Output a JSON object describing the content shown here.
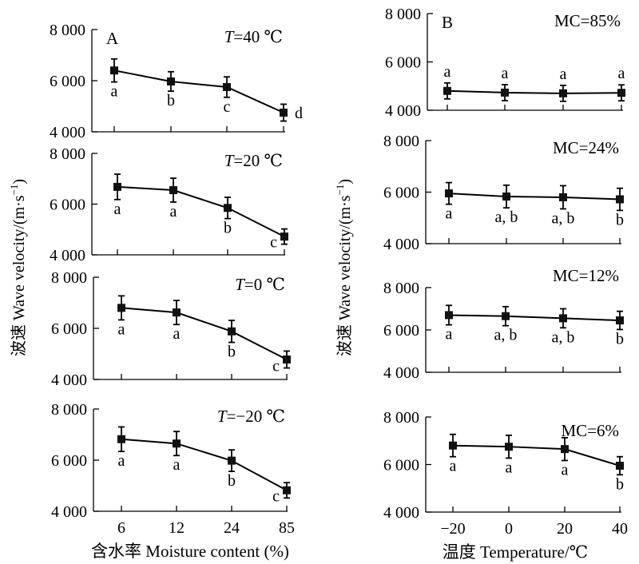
{
  "chart_data": [
    {
      "type": "line",
      "group": "A",
      "panel_letter": "A",
      "title": "T=40 ℃",
      "title_var": "T",
      "title_rest": "=40 ℃",
      "categories": [
        "6",
        "12",
        "24",
        "85"
      ],
      "values": [
        6400,
        5970,
        5750,
        4750
      ],
      "errors": [
        450,
        380,
        400,
        330
      ],
      "letters": [
        "a",
        "b",
        "c",
        "d"
      ],
      "letter_pos": [
        "below",
        "below",
        "below",
        "right"
      ],
      "ylim": [
        4000,
        8000
      ],
      "yticks": [
        "4 000",
        "6 000",
        "8 000"
      ]
    },
    {
      "type": "line",
      "group": "A",
      "title": "T=20 ℃",
      "title_var": "T",
      "title_rest": "=20 ℃",
      "categories": [
        "6",
        "12",
        "24",
        "85"
      ],
      "values": [
        6680,
        6550,
        5850,
        4720
      ],
      "errors": [
        500,
        470,
        420,
        300
      ],
      "letters": [
        "a",
        "a",
        "b",
        "c"
      ],
      "letter_pos": [
        "below",
        "below",
        "below",
        "left"
      ],
      "ylim": [
        4000,
        8000
      ],
      "yticks": [
        "4 000",
        "6 000",
        "8 000"
      ]
    },
    {
      "type": "line",
      "group": "A",
      "title": "T=0 ℃",
      "title_var": "T",
      "title_rest": "=0 ℃",
      "categories": [
        "6",
        "12",
        "24",
        "85"
      ],
      "values": [
        6800,
        6620,
        5880,
        4780
      ],
      "errors": [
        470,
        470,
        430,
        330
      ],
      "letters": [
        "a",
        "a",
        "b",
        "c"
      ],
      "letter_pos": [
        "below",
        "below",
        "below",
        "left"
      ],
      "ylim": [
        4000,
        8000
      ],
      "yticks": [
        "4 000",
        "6 000",
        "8 000"
      ]
    },
    {
      "type": "line",
      "group": "A",
      "title": "T=−20 ℃",
      "title_var": "T",
      "title_rest": "=−20 ℃",
      "categories": [
        "6",
        "12",
        "24",
        "85"
      ],
      "values": [
        6820,
        6650,
        5980,
        4820
      ],
      "errors": [
        480,
        470,
        420,
        300
      ],
      "letters": [
        "a",
        "a",
        "b",
        "c"
      ],
      "letter_pos": [
        "below",
        "below",
        "below",
        "left"
      ],
      "ylim": [
        4000,
        8000
      ],
      "yticks": [
        "4 000",
        "6 000",
        "8 000"
      ],
      "xlabel": "含水率 Moisture content (%)"
    },
    {
      "type": "line",
      "group": "B",
      "panel_letter": "B",
      "title": "MC=85%",
      "categories": [
        "−20",
        "0",
        "20",
        "40"
      ],
      "values": [
        4800,
        4730,
        4700,
        4720
      ],
      "errors": [
        330,
        330,
        330,
        330
      ],
      "letters": [
        "a",
        "a",
        "a",
        "a"
      ],
      "letter_pos": [
        "above",
        "above",
        "above",
        "above"
      ],
      "ylim": [
        4000,
        8000
      ],
      "yticks": [
        "4 000",
        "6 000",
        "8 000"
      ]
    },
    {
      "type": "line",
      "group": "B",
      "title": "MC=24%",
      "categories": [
        "−20",
        "0",
        "20",
        "40"
      ],
      "values": [
        5950,
        5830,
        5800,
        5720
      ],
      "errors": [
        420,
        440,
        450,
        430
      ],
      "letters": [
        "a",
        "a, b",
        "a, b",
        "b"
      ],
      "letter_pos": [
        "below",
        "below",
        "below",
        "below"
      ],
      "ylim": [
        4000,
        8000
      ],
      "yticks": [
        "4 000",
        "6 000",
        "8 000"
      ]
    },
    {
      "type": "line",
      "group": "B",
      "title": "MC=12%",
      "categories": [
        "−20",
        "0",
        "20",
        "40"
      ],
      "values": [
        6700,
        6650,
        6550,
        6450
      ],
      "errors": [
        460,
        450,
        450,
        430
      ],
      "letters": [
        "a",
        "a, b",
        "a, b",
        "b"
      ],
      "letter_pos": [
        "below",
        "below",
        "below",
        "below"
      ],
      "ylim": [
        4000,
        8000
      ],
      "yticks": [
        "4 000",
        "6 000",
        "8 000"
      ]
    },
    {
      "type": "line",
      "group": "B",
      "title": "MC=6%",
      "categories": [
        "−20",
        "0",
        "20",
        "40"
      ],
      "values": [
        6800,
        6750,
        6650,
        5950
      ],
      "errors": [
        470,
        480,
        480,
        380
      ],
      "letters": [
        "a",
        "a",
        "a",
        "b"
      ],
      "letter_pos": [
        "below",
        "below",
        "below",
        "below"
      ],
      "ylim": [
        4000,
        8000
      ],
      "yticks": [
        "4 000",
        "6 000",
        "8 000"
      ],
      "xlabel": "温度 Temperature/℃"
    }
  ],
  "ylabel_left": "波速 Wave velocity/(m·s⁻¹)",
  "ylabel_right": "波速 Wave velocity/(m·s⁻¹)",
  "ylabel_main": "波速 Wave velocity/(m·s",
  "ylabel_sup": "−1",
  "ylabel_end": ")"
}
